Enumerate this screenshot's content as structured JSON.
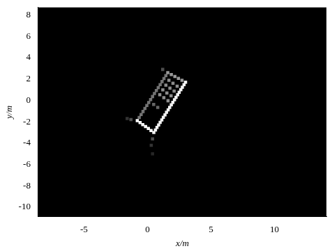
{
  "chart_data": {
    "type": "scatter",
    "x_label": "x/m",
    "y_label": "y/m",
    "xlim": [
      -8.6,
      14.1
    ],
    "xticks": [
      -5,
      0,
      5,
      10
    ],
    "ylim": [
      -10.9,
      8.7
    ],
    "yticks": [
      -10,
      -8,
      -6,
      -4,
      -2,
      0,
      2,
      4,
      6,
      8
    ],
    "grid": false,
    "color": "#ffffff",
    "marker": "square",
    "x": [
      0.5,
      0.63,
      0.75,
      0.88,
      1.0,
      1.13,
      1.25,
      1.38,
      1.5,
      1.63,
      1.75,
      1.88,
      2.0,
      2.13,
      2.25,
      2.38,
      2.5,
      2.63,
      2.75,
      2.88,
      3.0,
      -0.8,
      -0.58,
      -0.37,
      -0.15,
      0.07,
      0.28,
      2.72,
      2.44,
      2.16,
      1.88,
      1.6,
      1.45,
      1.3,
      1.15,
      1.0,
      0.85,
      0.7,
      0.55,
      0.4,
      0.25,
      0.1,
      -0.05,
      -0.2,
      -0.35,
      -0.5,
      -0.65,
      0.97,
      1.29,
      1.62,
      1.21,
      1.53,
      1.86,
      1.45,
      1.77,
      2.1,
      1.69,
      2.01,
      2.34,
      0.49,
      0.81,
      0.4,
      0.3,
      0.4,
      -1.3,
      -1.6,
      1.2
    ],
    "y": [
      -3.0,
      -2.77,
      -2.53,
      -2.3,
      -2.06,
      -1.83,
      -1.59,
      -1.36,
      -1.12,
      -0.89,
      -0.65,
      -0.42,
      -0.18,
      0.06,
      0.29,
      0.53,
      0.76,
      1.0,
      1.23,
      1.47,
      1.7,
      -1.9,
      -2.08,
      -2.27,
      -2.45,
      -2.63,
      -2.82,
      1.88,
      2.06,
      2.24,
      2.42,
      2.6,
      2.32,
      2.04,
      1.76,
      1.48,
      1.2,
      0.92,
      0.64,
      0.36,
      0.08,
      -0.2,
      -0.48,
      -0.76,
      -1.04,
      -1.32,
      -1.6,
      0.53,
      0.25,
      -0.03,
      0.98,
      0.7,
      0.43,
      1.43,
      1.15,
      0.88,
      1.88,
      1.6,
      1.33,
      -0.38,
      -0.65,
      -3.6,
      -4.2,
      -5.0,
      -1.8,
      -1.7,
      2.9
    ],
    "intensity": [
      0.95,
      0.95,
      0.95,
      0.95,
      0.95,
      0.95,
      0.95,
      0.95,
      0.95,
      0.95,
      0.95,
      0.95,
      0.95,
      0.95,
      0.95,
      0.95,
      0.95,
      0.95,
      0.95,
      0.95,
      0.95,
      1.0,
      1.0,
      1.0,
      1.0,
      1.0,
      1.0,
      0.6,
      0.6,
      0.6,
      0.6,
      0.6,
      0.45,
      0.45,
      0.45,
      0.45,
      0.45,
      0.45,
      0.45,
      0.45,
      0.45,
      0.45,
      0.45,
      0.45,
      0.45,
      0.45,
      0.45,
      0.55,
      0.55,
      0.55,
      0.55,
      0.55,
      0.55,
      0.55,
      0.55,
      0.55,
      0.55,
      0.55,
      0.55,
      0.4,
      0.4,
      0.3,
      0.2,
      0.15,
      0.3,
      0.2,
      0.3
    ]
  }
}
